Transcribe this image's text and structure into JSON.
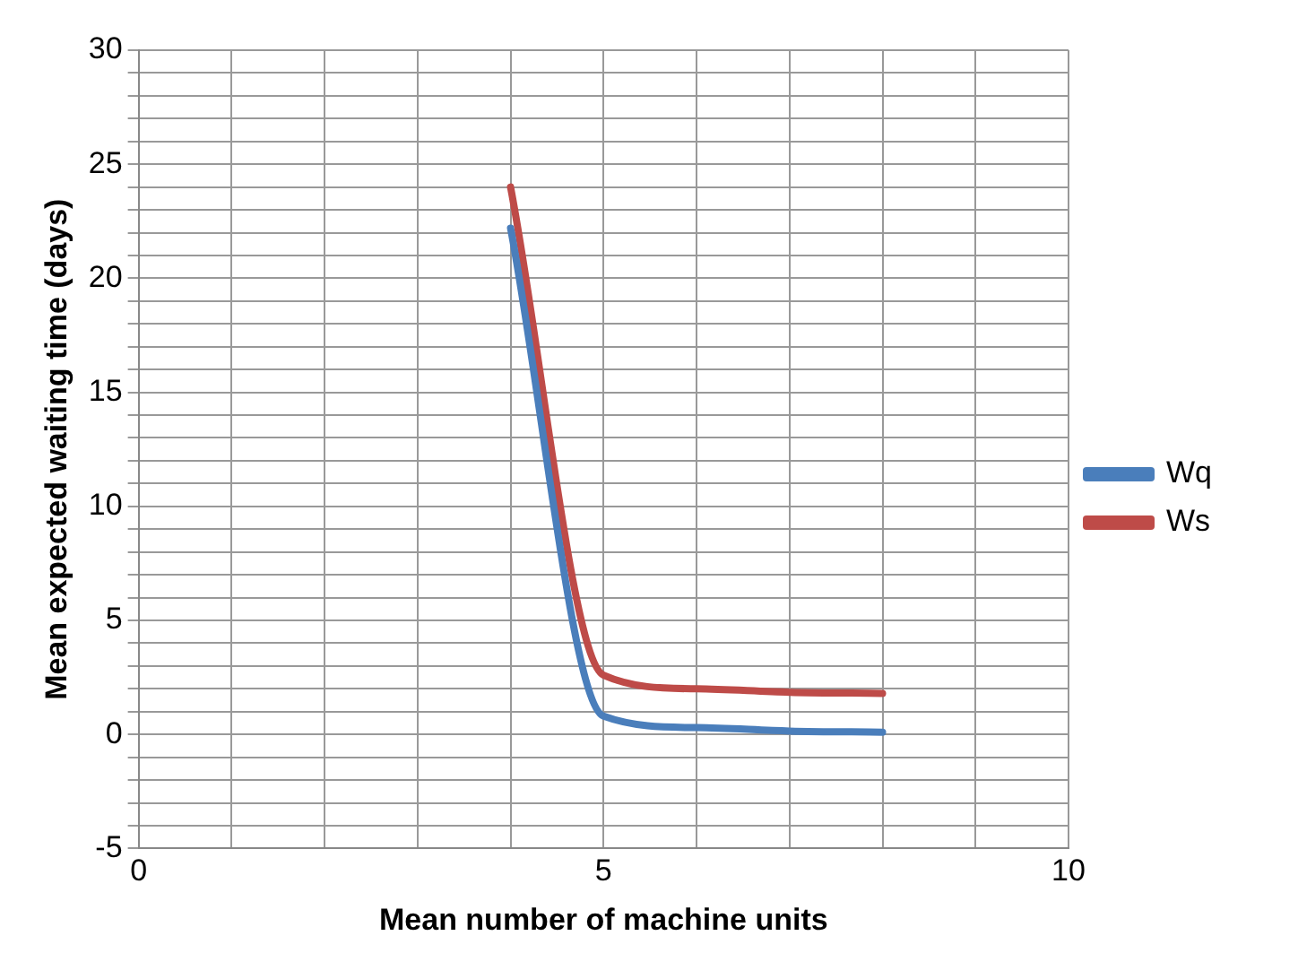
{
  "chart_data": {
    "type": "line",
    "xlabel": "Mean number of machine units",
    "ylabel": "Mean expected waiting time (days)",
    "x": [
      4,
      5,
      6,
      7,
      8
    ],
    "series": [
      {
        "name": "Wq",
        "color": "#4a7ebb",
        "values": [
          22.2,
          0.8,
          0.3,
          0.15,
          0.1
        ]
      },
      {
        "name": "Ws",
        "color": "#be4b48",
        "values": [
          24,
          2.6,
          2.0,
          1.85,
          1.8
        ]
      }
    ],
    "xlim": [
      0,
      10
    ],
    "xticks": [
      0,
      {
        "value": 1,
        "label": null
      },
      {
        "value": 2,
        "label": null
      },
      {
        "value": 3,
        "label": null
      },
      {
        "value": 4,
        "label": null
      },
      5,
      {
        "value": 6,
        "label": null
      },
      {
        "value": 7,
        "label": null
      },
      {
        "value": 8,
        "label": null
      },
      {
        "value": 9,
        "label": null
      },
      10
    ],
    "ylim": [
      -5,
      30
    ],
    "yticks": [
      -5,
      {
        "value": -4,
        "label": null
      },
      {
        "value": -3,
        "label": null
      },
      {
        "value": -2,
        "label": null
      },
      {
        "value": -1,
        "label": null
      },
      0,
      {
        "value": 1,
        "label": null
      },
      {
        "value": 2,
        "label": null
      },
      {
        "value": 3,
        "label": null
      },
      {
        "value": 4,
        "label": null
      },
      5,
      {
        "value": 6,
        "label": null
      },
      {
        "value": 7,
        "label": null
      },
      {
        "value": 8,
        "label": null
      },
      {
        "value": 9,
        "label": null
      },
      10,
      {
        "value": 11,
        "label": null
      },
      {
        "value": 12,
        "label": null
      },
      {
        "value": 13,
        "label": null
      },
      {
        "value": 14,
        "label": null
      },
      15,
      {
        "value": 16,
        "label": null
      },
      {
        "value": 17,
        "label": null
      },
      {
        "value": 18,
        "label": null
      },
      {
        "value": 19,
        "label": null
      },
      20,
      {
        "value": 21,
        "label": null
      },
      {
        "value": 22,
        "label": null
      },
      {
        "value": 23,
        "label": null
      },
      {
        "value": 24,
        "label": null
      },
      25,
      {
        "value": 26,
        "label": null
      },
      {
        "value": 27,
        "label": null
      },
      {
        "value": 28,
        "label": null
      },
      {
        "value": 29,
        "label": null
      },
      30
    ],
    "grid": true,
    "legend": "right",
    "marker": "none",
    "line_style": "solid"
  }
}
